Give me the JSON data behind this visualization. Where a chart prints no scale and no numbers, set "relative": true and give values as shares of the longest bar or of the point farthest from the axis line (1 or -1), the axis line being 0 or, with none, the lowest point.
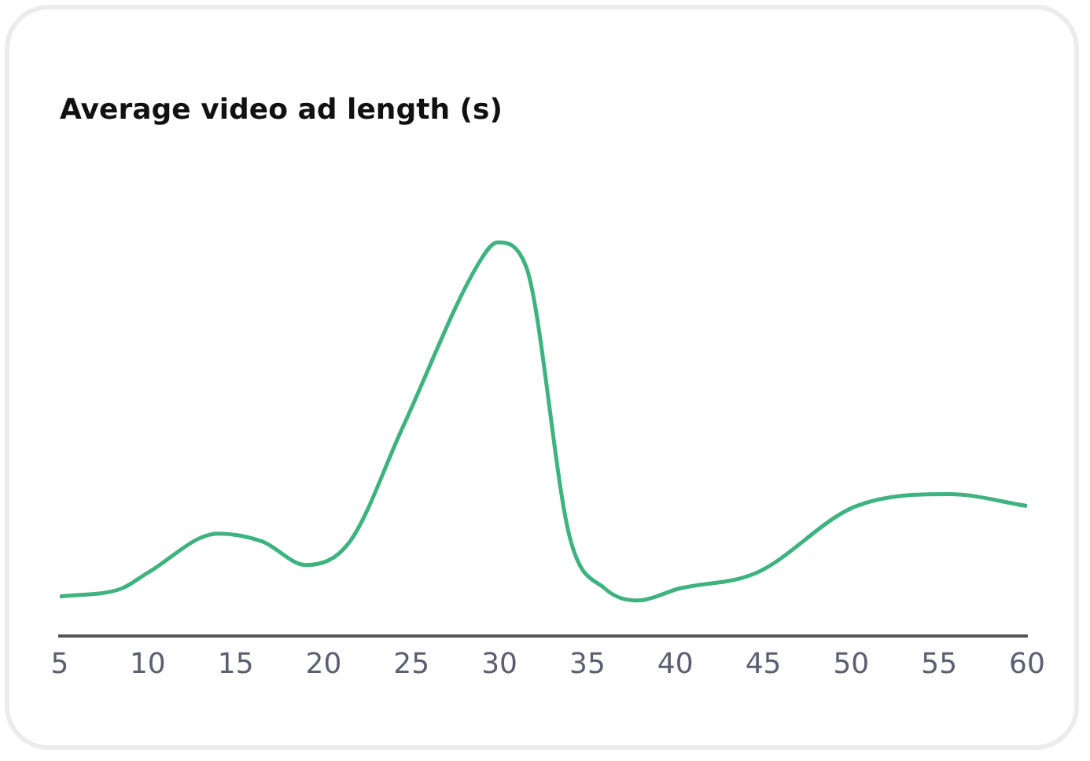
{
  "chart_data": {
    "type": "line",
    "title": "Average video ad length (s)",
    "relative": true,
    "x": [
      5,
      8.5,
      10,
      14,
      16.5,
      19,
      21.5,
      24.5,
      29,
      29.9,
      31.5,
      34,
      36,
      37.9,
      40.2,
      44.6,
      50.3,
      55.6,
      60
    ],
    "values": [
      0.1,
      0.12,
      0.16,
      0.26,
      0.24,
      0.18,
      0.24,
      0.53,
      0.96,
      1.0,
      0.94,
      0.25,
      0.12,
      0.09,
      0.12,
      0.16,
      0.33,
      0.36,
      0.33
    ],
    "color": "#3fb37f",
    "xlim": [
      5,
      60
    ],
    "xticks": [
      5,
      10,
      15,
      20,
      25,
      30,
      35,
      40,
      45,
      50,
      55,
      60
    ],
    "grid": false,
    "legend": false,
    "marker": "none",
    "line_style": "solid"
  }
}
